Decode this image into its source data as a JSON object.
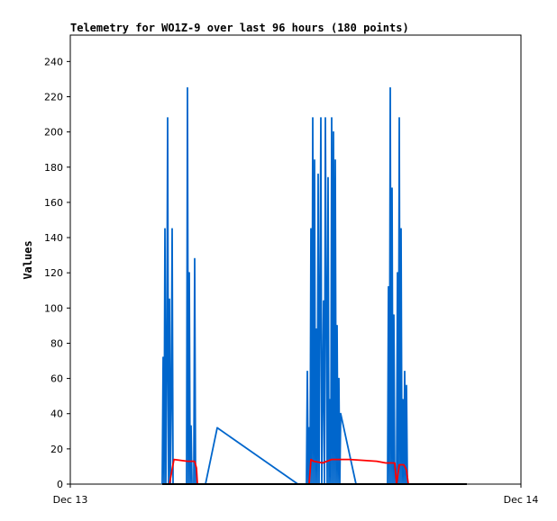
{
  "chart_data": {
    "type": "line",
    "title": "Telemetry for WO1Z-9 over last 96 hours (180 points)",
    "xlabel": "",
    "ylabel": "Values",
    "x_ticks": [
      "Dec 13",
      "Dec 14"
    ],
    "xlim": [
      0,
      1
    ],
    "ylim": [
      0,
      255
    ],
    "y_ticks": [
      0,
      20,
      40,
      60,
      80,
      100,
      120,
      140,
      160,
      180,
      200,
      220,
      240
    ],
    "grid": false,
    "legend": "none",
    "series": [
      {
        "color": "#0066cc",
        "x": [
          0.204,
          0.206,
          0.208,
          0.21,
          0.212,
          0.214,
          0.216,
          0.218,
          0.22,
          0.222,
          0.224,
          0.226,
          0.228,
          0.23,
          0.258,
          0.26,
          0.262,
          0.264,
          0.266,
          0.268,
          0.27,
          0.272,
          0.274,
          0.276,
          0.278,
          0.28,
          0.282,
          0.3,
          0.326,
          0.505,
          0.524,
          0.526,
          0.528,
          0.53,
          0.532,
          0.534,
          0.536,
          0.538,
          0.54,
          0.542,
          0.544,
          0.546,
          0.548,
          0.55,
          0.552,
          0.556,
          0.558,
          0.562,
          0.564,
          0.566,
          0.57,
          0.572,
          0.574,
          0.576,
          0.578,
          0.58,
          0.582,
          0.584,
          0.586,
          0.588,
          0.59,
          0.592,
          0.594,
          0.596,
          0.598,
          0.6,
          0.634,
          0.704,
          0.706,
          0.708,
          0.71,
          0.712,
          0.714,
          0.716,
          0.718,
          0.72,
          0.722,
          0.724,
          0.726,
          0.728,
          0.73,
          0.732,
          0.734,
          0.736,
          0.738,
          0.74,
          0.742,
          0.744,
          0.746,
          0.748,
          0.75
        ],
        "y": [
          0,
          72,
          0,
          145,
          0,
          64,
          208,
          0,
          105,
          0,
          48,
          145,
          0,
          0,
          0,
          225,
          0,
          120,
          0,
          33,
          0,
          0,
          0,
          128,
          0,
          0,
          0,
          0,
          32,
          0,
          0,
          64,
          0,
          32,
          0,
          145,
          0,
          208,
          0,
          184,
          0,
          88,
          0,
          176,
          0,
          208,
          0,
          104,
          0,
          208,
          0,
          174,
          0,
          48,
          0,
          208,
          0,
          200,
          0,
          184,
          0,
          90,
          0,
          60,
          0,
          40,
          0,
          0,
          112,
          0,
          225,
          0,
          168,
          0,
          96,
          0,
          0,
          0,
          120,
          0,
          208,
          0,
          145,
          0,
          48,
          0,
          64,
          0,
          56,
          0,
          0
        ]
      },
      {
        "color": "#ff0000",
        "x": [
          0.22,
          0.23,
          0.26,
          0.276,
          0.28,
          0.282,
          0.53,
          0.534,
          0.54,
          0.56,
          0.58,
          0.6,
          0.62,
          0.68,
          0.7,
          0.72,
          0.724,
          0.73,
          0.74,
          0.746,
          0.75,
          0.76
        ],
        "y": [
          0,
          14,
          13,
          13,
          9,
          0,
          0,
          14,
          13,
          12,
          14,
          14,
          14,
          13,
          12,
          12,
          0,
          11,
          11,
          8,
          0,
          0
        ]
      },
      {
        "color": "#000000",
        "x": [
          0.204,
          0.88
        ],
        "y": [
          0,
          0
        ]
      }
    ]
  }
}
